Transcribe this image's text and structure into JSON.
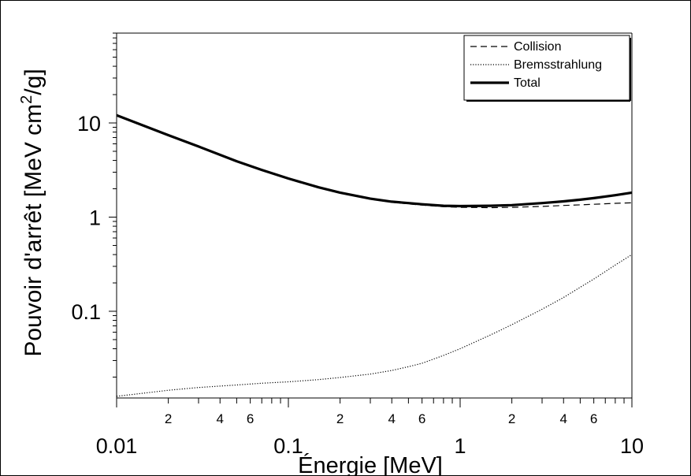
{
  "chart_data": {
    "type": "line",
    "xscale": "log",
    "yscale": "log",
    "xlim": [
      0.01,
      10
    ],
    "ylim": [
      0.012,
      90
    ],
    "xlabel": "Énergie [MeV]",
    "ylabel_text": "Pouvoir d'arrêt [MeV cm",
    "ylabel_sup": "2",
    "ylabel_tail": "/g]",
    "x_major_ticks": [
      {
        "value": 0.01,
        "label": "0.01"
      },
      {
        "value": 0.1,
        "label": "0.1"
      },
      {
        "value": 1,
        "label": "1"
      },
      {
        "value": 10,
        "label": "10"
      }
    ],
    "x_minor_ticks": [
      0.02,
      0.03,
      0.04,
      0.05,
      0.06,
      0.07,
      0.08,
      0.09,
      0.2,
      0.3,
      0.4,
      0.5,
      0.6,
      0.7,
      0.8,
      0.9,
      2,
      3,
      4,
      5,
      6,
      7,
      8,
      9
    ],
    "x_minor_labels": [
      {
        "value": 0.02,
        "label": "2"
      },
      {
        "value": 0.04,
        "label": "4"
      },
      {
        "value": 0.06,
        "label": "6"
      },
      {
        "value": 0.2,
        "label": "2"
      },
      {
        "value": 0.4,
        "label": "4"
      },
      {
        "value": 0.6,
        "label": "6"
      },
      {
        "value": 2,
        "label": "2"
      },
      {
        "value": 4,
        "label": "4"
      },
      {
        "value": 6,
        "label": "6"
      }
    ],
    "y_major_ticks": [
      {
        "value": 0.1,
        "label": "0.1"
      },
      {
        "value": 1,
        "label": "1"
      },
      {
        "value": 10,
        "label": "10"
      }
    ],
    "y_minor_ticks": [
      0.02,
      0.03,
      0.04,
      0.05,
      0.06,
      0.07,
      0.08,
      0.09,
      0.2,
      0.3,
      0.4,
      0.5,
      0.6,
      0.7,
      0.8,
      0.9,
      2,
      3,
      4,
      5,
      6,
      7,
      8,
      9,
      20,
      30,
      40,
      50,
      60,
      70,
      80,
      90
    ],
    "x": [
      0.01,
      0.02,
      0.03,
      0.05,
      0.07,
      0.1,
      0.15,
      0.2,
      0.3,
      0.4,
      0.5,
      0.6,
      0.8,
      1,
      1.5,
      2,
      3,
      4,
      5,
      6,
      8,
      10
    ],
    "series": [
      {
        "name": "Collision",
        "style": "dashed",
        "values": [
          12.0,
          7.4,
          5.6,
          3.9,
          3.15,
          2.55,
          2.05,
          1.8,
          1.55,
          1.44,
          1.38,
          1.34,
          1.29,
          1.27,
          1.26,
          1.27,
          1.3,
          1.33,
          1.35,
          1.37,
          1.4,
          1.42
        ]
      },
      {
        "name": "Bremsstrahlung",
        "style": "dotted",
        "values": [
          0.0125,
          0.0145,
          0.0155,
          0.0165,
          0.0172,
          0.0178,
          0.0188,
          0.0198,
          0.0215,
          0.0235,
          0.0258,
          0.028,
          0.034,
          0.04,
          0.056,
          0.072,
          0.105,
          0.14,
          0.18,
          0.22,
          0.31,
          0.4
        ]
      },
      {
        "name": "Total",
        "style": "solid",
        "values": [
          12.05,
          7.42,
          5.62,
          3.92,
          3.17,
          2.57,
          2.07,
          1.82,
          1.57,
          1.46,
          1.41,
          1.37,
          1.32,
          1.31,
          1.32,
          1.34,
          1.41,
          1.47,
          1.53,
          1.59,
          1.71,
          1.82
        ]
      }
    ],
    "legend": {
      "placement": "top-right"
    }
  }
}
